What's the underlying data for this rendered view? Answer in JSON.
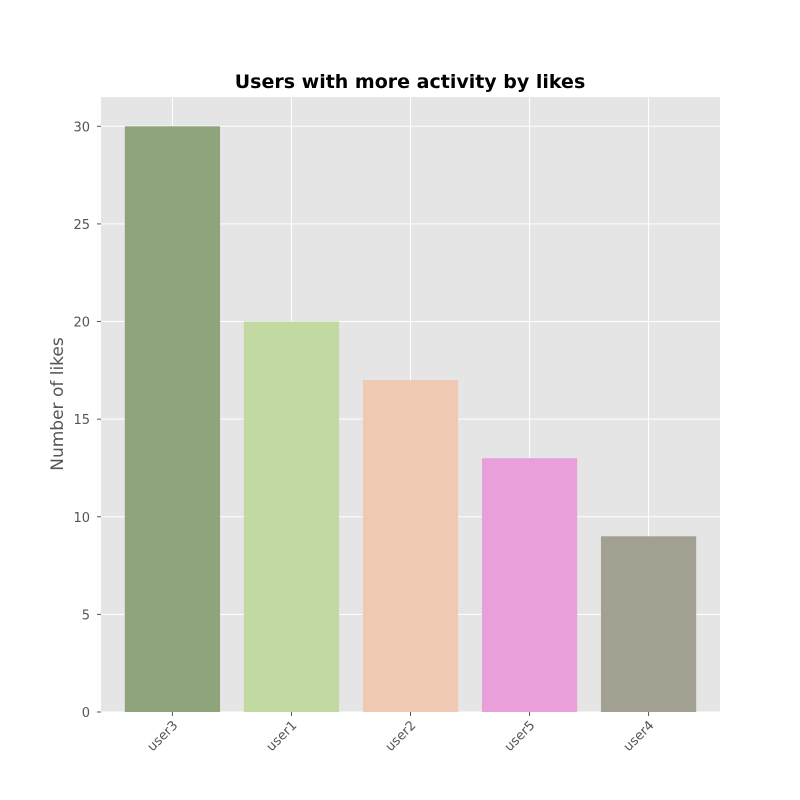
{
  "chart_data": {
    "type": "bar",
    "title": "Users with more activity by likes",
    "xlabel": "",
    "ylabel": "Number of likes",
    "categories": [
      "user3",
      "user1",
      "user2",
      "user5",
      "user4"
    ],
    "values": [
      30,
      20,
      17,
      13,
      9
    ],
    "colors": [
      "#8fa47b",
      "#c2d9a2",
      "#f0c9b3",
      "#e9a0da",
      "#a2a091"
    ],
    "ylim": [
      0,
      31.5
    ],
    "yticks": [
      0,
      5,
      10,
      15,
      20,
      25,
      30
    ],
    "xtick_rotation": 45,
    "grid": true,
    "plot_background": "#e5e5e5"
  }
}
